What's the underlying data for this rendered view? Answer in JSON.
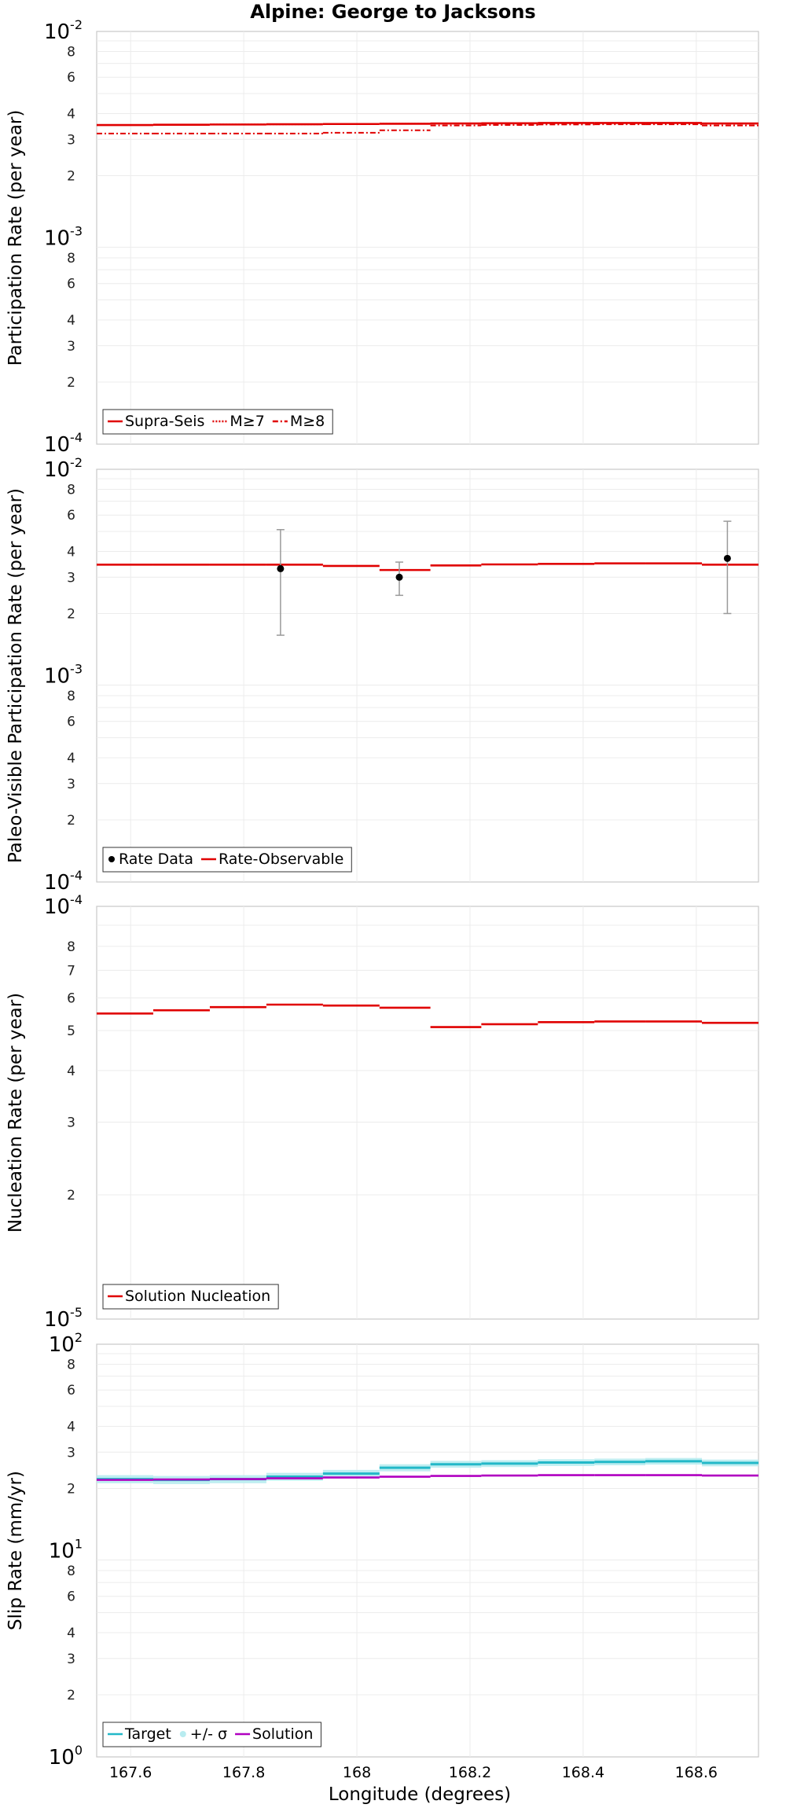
{
  "title": "Alpine: George to Jacksons",
  "xlabel": "Longitude (degrees)",
  "xlim": [
    167.54,
    168.71
  ],
  "xticks": [
    "167.6",
    "167.8",
    "168",
    "168.2",
    "168.4",
    "168.6"
  ],
  "colors": {
    "red": "#e00000",
    "cyan": "#22b8c8",
    "cyan_band": "#b8ecf0",
    "magenta": "#b000c0",
    "errorbar": "#9a9a9a",
    "point": "#000000",
    "grid": "#ececec",
    "frame": "#c8c8c8"
  },
  "chart_data": [
    {
      "type": "line",
      "ylabel": "Participation Rate (per year)",
      "yscale": "log",
      "ylim": [
        0.0001,
        0.01
      ],
      "decades": [
        {
          "base": "10",
          "exp": "-2"
        },
        {
          "base": "10",
          "exp": "-3"
        },
        {
          "base": "10",
          "exp": "-4"
        }
      ],
      "minor_tick_labels": [
        "8",
        "6",
        "4",
        "3",
        "2"
      ],
      "x_edges": [
        167.54,
        167.64,
        167.74,
        167.84,
        167.94,
        168.04,
        168.13,
        168.22,
        168.32,
        168.42,
        168.51,
        168.61,
        168.71
      ],
      "series": [
        {
          "name": "Supra-Seis",
          "style": "solid",
          "values": [
            0.00352,
            0.00353,
            0.00354,
            0.00355,
            0.00356,
            0.00357,
            0.00358,
            0.00359,
            0.0036,
            0.0036,
            0.0036,
            0.00358
          ]
        },
        {
          "name": "M≥7",
          "style": "dotted",
          "values": [
            0.00352,
            0.00353,
            0.00354,
            0.00355,
            0.00356,
            0.00357,
            0.00358,
            0.00359,
            0.0036,
            0.0036,
            0.0036,
            0.00358
          ]
        },
        {
          "name": "M≥8",
          "style": "dashdot",
          "values": [
            0.0032,
            0.0032,
            0.0032,
            0.0032,
            0.00323,
            0.00332,
            0.0035,
            0.00352,
            0.00354,
            0.00355,
            0.00355,
            0.0035
          ]
        }
      ],
      "legend": [
        "Supra-Seis",
        "M≥7",
        "M≥8"
      ],
      "legend_position": "bottom-left"
    },
    {
      "type": "line",
      "ylabel": "Paleo-Visible Participation Rate (per year)",
      "yscale": "log",
      "ylim": [
        0.0001,
        0.01
      ],
      "decades": [
        {
          "base": "10",
          "exp": "-2"
        },
        {
          "base": "10",
          "exp": "-3"
        },
        {
          "base": "10",
          "exp": "-4"
        }
      ],
      "minor_tick_labels": [
        "8",
        "6",
        "4",
        "3",
        "2"
      ],
      "x_edges": [
        167.54,
        167.64,
        167.74,
        167.84,
        167.94,
        168.04,
        168.13,
        168.22,
        168.32,
        168.42,
        168.51,
        168.61,
        168.71
      ],
      "series": [
        {
          "name": "Rate-Observable",
          "style": "solid",
          "values": [
            0.00345,
            0.00345,
            0.00345,
            0.00345,
            0.0034,
            0.00325,
            0.00342,
            0.00346,
            0.00348,
            0.0035,
            0.0035,
            0.00345
          ]
        }
      ],
      "points": [
        {
          "name": "Rate Data",
          "x": 167.865,
          "y": 0.0033,
          "low": 0.00157,
          "high": 0.0051
        },
        {
          "name": "Rate Data",
          "x": 168.075,
          "y": 0.003,
          "low": 0.00245,
          "high": 0.00355
        },
        {
          "name": "Rate Data",
          "x": 168.655,
          "y": 0.0037,
          "low": 0.002,
          "high": 0.0056
        }
      ],
      "legend": [
        "Rate Data",
        "Rate-Observable"
      ],
      "legend_position": "bottom-left"
    },
    {
      "type": "line",
      "ylabel": "Nucleation Rate (per year)",
      "yscale": "log",
      "ylim": [
        1e-05,
        0.0001
      ],
      "decades": [
        {
          "base": "10",
          "exp": "-4"
        },
        {
          "base": "10",
          "exp": "-5"
        }
      ],
      "minor_tick_labels": [
        "8",
        "7",
        "6",
        "5",
        "4",
        "3",
        "2"
      ],
      "x_edges": [
        167.54,
        167.64,
        167.74,
        167.84,
        167.94,
        168.04,
        168.13,
        168.22,
        168.32,
        168.42,
        168.51,
        168.61,
        168.71
      ],
      "series": [
        {
          "name": "Solution Nucleation",
          "style": "solid",
          "values": [
            5.5e-05,
            5.6e-05,
            5.7e-05,
            5.78e-05,
            5.75e-05,
            5.68e-05,
            5.1e-05,
            5.18e-05,
            5.24e-05,
            5.26e-05,
            5.26e-05,
            5.22e-05
          ]
        }
      ],
      "legend": [
        "Solution Nucleation"
      ],
      "legend_position": "bottom-left"
    },
    {
      "type": "line",
      "ylabel": "Slip Rate (mm/yr)",
      "yscale": "log",
      "ylim": [
        1,
        100
      ],
      "decades": [
        {
          "base": "10",
          "exp": "2"
        },
        {
          "base": "10",
          "exp": "1"
        },
        {
          "base": "10",
          "exp": "0"
        }
      ],
      "minor_tick_labels": [
        "8",
        "6",
        "4",
        "3",
        "2"
      ],
      "x_edges": [
        167.54,
        167.64,
        167.74,
        167.84,
        167.94,
        168.04,
        168.13,
        168.22,
        168.32,
        168.42,
        168.51,
        168.61,
        168.71
      ],
      "series": [
        {
          "name": "Target",
          "style": "solid",
          "values": [
            22.2,
            22.0,
            22.2,
            22.8,
            23.6,
            25.2,
            26.2,
            26.4,
            26.7,
            26.9,
            27.1,
            26.6
          ]
        },
        {
          "name": "+/- σ",
          "style": "band",
          "low": [
            21.2,
            21.0,
            21.2,
            21.8,
            22.6,
            24.2,
            25.2,
            25.4,
            25.7,
            25.9,
            26.1,
            25.6
          ],
          "high": [
            23.2,
            23.0,
            23.2,
            23.8,
            24.6,
            26.2,
            27.2,
            27.4,
            27.7,
            27.9,
            28.1,
            27.6
          ]
        },
        {
          "name": "Solution",
          "style": "solid",
          "values": [
            22.0,
            22.1,
            22.2,
            22.4,
            22.6,
            22.8,
            23.0,
            23.1,
            23.2,
            23.2,
            23.2,
            23.1
          ]
        }
      ],
      "legend": [
        "Target",
        "+/- σ",
        "Solution"
      ],
      "legend_position": "bottom-left"
    }
  ]
}
